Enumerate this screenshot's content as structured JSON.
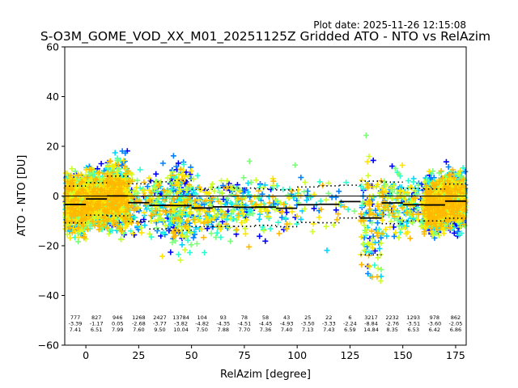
{
  "chart_data": {
    "type": "scatter",
    "plot_date": "Plot date: 2025-11-26 12:15:08",
    "title": "S-O3M_GOME_VOD_XX_M01_20251125Z Gridded ATO - NTO vs RelAzim",
    "xlabel": "RelAzim [degree]",
    "ylabel": "ATO - NTO [DU]",
    "xlim": [
      -10,
      180
    ],
    "ylim": [
      -60,
      60
    ],
    "xticks": [
      0,
      25,
      50,
      75,
      100,
      125,
      150,
      175
    ],
    "yticks": [
      -60,
      -40,
      -20,
      0,
      20,
      40,
      60
    ],
    "colors": {
      "zero_line": "#000000",
      "median": "#000000",
      "scatter": [
        "#0000ff",
        "#0080ff",
        "#00d4ff",
        "#29ffce",
        "#7dff7a",
        "#ceff29",
        "#ffe500",
        "#ffb900"
      ]
    },
    "bins": [
      {
        "xmin": -10,
        "xmax": 0,
        "count": "777",
        "mean": "-3.39",
        "std": "7.41"
      },
      {
        "xmin": 0,
        "xmax": 10,
        "count": "827",
        "mean": "-1.17",
        "std": "6.51"
      },
      {
        "xmin": 10,
        "xmax": 20,
        "count": "946",
        "mean": "0.05",
        "std": "7.99"
      },
      {
        "xmin": 20,
        "xmax": 30,
        "count": "1268",
        "mean": "-2.68",
        "std": "7.60"
      },
      {
        "xmin": 30,
        "xmax": 40,
        "count": "2427",
        "mean": "-3.77",
        "std": "9.50"
      },
      {
        "xmin": 40,
        "xmax": 50,
        "count": "13784",
        "mean": "-3.82",
        "std": "10.04"
      },
      {
        "xmin": 50,
        "xmax": 60,
        "count": "104",
        "mean": "-4.82",
        "std": "7.50"
      },
      {
        "xmin": 60,
        "xmax": 70,
        "count": "93",
        "mean": "-4.35",
        "std": "7.88"
      },
      {
        "xmin": 70,
        "xmax": 80,
        "count": "78",
        "mean": "-4.51",
        "std": "7.70"
      },
      {
        "xmin": 80,
        "xmax": 90,
        "count": "58",
        "mean": "-4.45",
        "std": "7.36"
      },
      {
        "xmin": 90,
        "xmax": 100,
        "count": "43",
        "mean": "-4.93",
        "std": "7.40"
      },
      {
        "xmin": 100,
        "xmax": 110,
        "count": "25",
        "mean": "-3.50",
        "std": "7.13"
      },
      {
        "xmin": 110,
        "xmax": 120,
        "count": "22",
        "mean": "-3.33",
        "std": "7.43"
      },
      {
        "xmin": 120,
        "xmax": 130,
        "count": "6",
        "mean": "-2.24",
        "std": "6.59"
      },
      {
        "xmin": 130,
        "xmax": 140,
        "count": "3217",
        "mean": "-8.84",
        "std": "14.84"
      },
      {
        "xmin": 140,
        "xmax": 150,
        "count": "2232",
        "mean": "-2.76",
        "std": "8.35"
      },
      {
        "xmin": 150,
        "xmax": 160,
        "count": "1293",
        "mean": "-3.51",
        "std": "6.53"
      },
      {
        "xmin": 160,
        "xmax": 170,
        "count": "978",
        "mean": "-3.60",
        "std": "6.42"
      },
      {
        "xmin": 170,
        "xmax": 180,
        "count": "862",
        "mean": "-2.05",
        "std": "6.86"
      }
    ]
  }
}
